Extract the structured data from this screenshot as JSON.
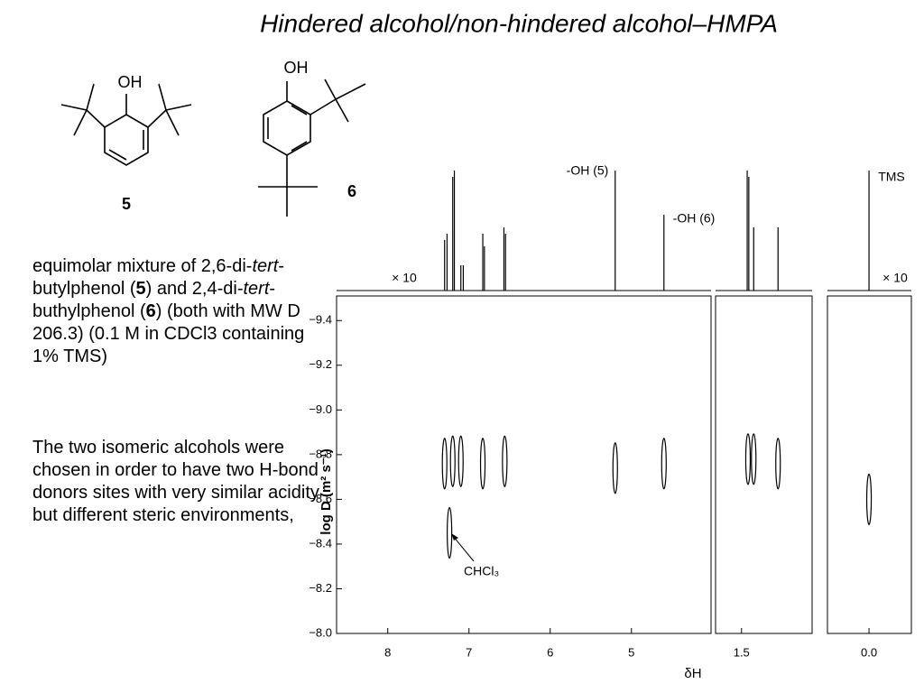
{
  "title": "Hindered alcohol/non-hindered alcohol–HMPA",
  "molecules": [
    {
      "group": "OH",
      "label": "5"
    },
    {
      "group": "OH",
      "label": "6"
    }
  ],
  "paragraphs": [
    [
      "equimolar mixture of 2,6-di-",
      "tert",
      "-butylphenol (",
      "5",
      ") and 2,4-di-",
      "tert",
      "-buthylphenol (",
      "6",
      ") (both with MW D 206.3) (0.1 M in CDCl3 containing 1% TMS)"
    ],
    [
      " The two isomeric alcohols were chosen in order to have two H-bond donors sites with very similar acidity but different steric environments,"
    ]
  ],
  "chart_data": {
    "type": "dosy",
    "x_label": "δH",
    "y_label": "log D (m² s⁻¹)",
    "ylim": [
      -9.51,
      -8.0
    ],
    "yticks": [
      {
        "value": -9.4,
        "label": "−9.4"
      },
      {
        "value": -9.2,
        "label": "−9.2"
      },
      {
        "value": -9.0,
        "label": "−9.0"
      },
      {
        "value": -8.8,
        "label": "−8.8"
      },
      {
        "value": -8.6,
        "label": "−8.6"
      },
      {
        "value": -8.4,
        "label": "−8.4"
      },
      {
        "value": -8.2,
        "label": "−8.2"
      },
      {
        "value": -8.0,
        "label": "−8.0"
      }
    ],
    "panels": [
      {
        "xlim": [
          8.63,
          4.02
        ],
        "xticks": [
          8,
          7,
          6,
          5
        ]
      },
      {
        "xlim": [
          1.82,
          0.63
        ],
        "xticks": [
          1.5
        ]
      },
      {
        "xlim": [
          0.51,
          -0.52
        ],
        "xticks": [
          {
            "value": 0,
            "label": "0.0"
          }
        ]
      }
    ],
    "spectrum": {
      "x": [
        7.3,
        7.27,
        7.2,
        7.18,
        7.1,
        7.07,
        6.83,
        6.81,
        6.57,
        6.55,
        5.2,
        4.6,
        1.43,
        1.41,
        1.35,
        1.05,
        0.0
      ],
      "values": [
        0.4,
        0.45,
        0.9,
        0.95,
        0.2,
        0.2,
        0.45,
        0.35,
        0.5,
        0.45,
        0.95,
        0.6,
        0.95,
        0.9,
        0.5,
        0.5,
        0.95
      ]
    },
    "peaks": {
      "x": [
        7.3,
        7.2,
        7.1,
        6.83,
        6.56,
        5.2,
        4.6,
        1.42,
        1.35,
        1.05,
        0.0,
        7.24
      ],
      "values": [
        -8.76,
        -8.77,
        -8.77,
        -8.76,
        -8.77,
        -8.74,
        -8.76,
        -8.78,
        -8.78,
        -8.76,
        -8.6,
        -8.45
      ]
    },
    "annotations": [
      "-OH (5)",
      "-OH (6)",
      "TMS",
      "× 10",
      "× 10",
      "CHCl₃"
    ]
  }
}
